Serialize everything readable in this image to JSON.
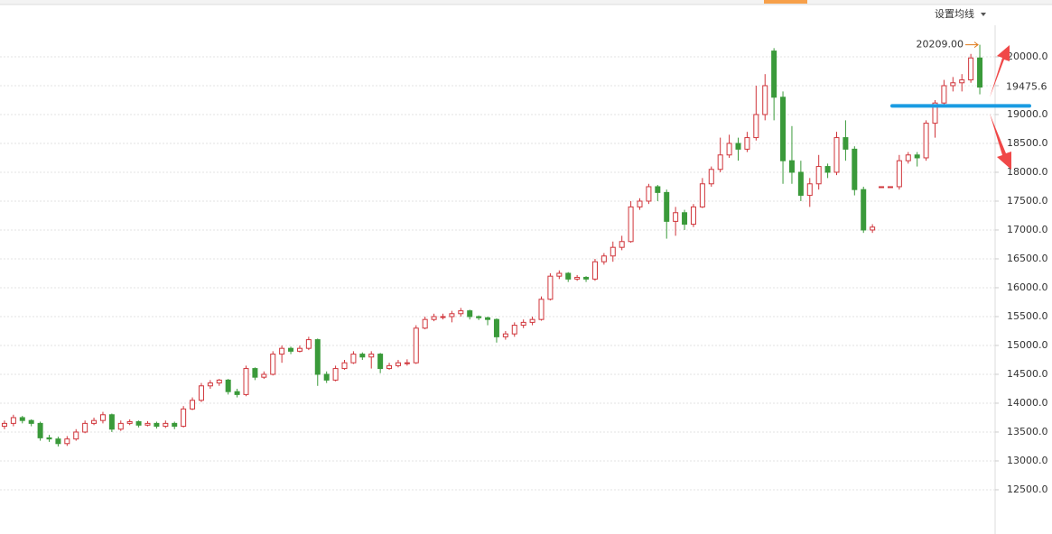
{
  "chart_data": {
    "type": "candlestick",
    "menu": "设置均线",
    "high_label": "20209.00",
    "last_label": "19475.6",
    "up_color": "#d0343a",
    "down_color": "#3a9a3a",
    "hline": {
      "value": 19150,
      "color": "#1a9be2"
    },
    "ylim": [
      11734,
      20984
    ],
    "yticks": [
      {
        "value": 12500,
        "label": "12500.0"
      },
      {
        "value": 13000,
        "label": "13000.0"
      },
      {
        "value": 13500,
        "label": "13500.0"
      },
      {
        "value": 14000,
        "label": "14000.0"
      },
      {
        "value": 14500,
        "label": "14500.0"
      },
      {
        "value": 15000,
        "label": "15000.0"
      },
      {
        "value": 15500,
        "label": "15500.0"
      },
      {
        "value": 16000,
        "label": "16000.0"
      },
      {
        "value": 16500,
        "label": "16500.0"
      },
      {
        "value": 17000,
        "label": "17000.0"
      },
      {
        "value": 17500,
        "label": "17500.0"
      },
      {
        "value": 18000,
        "label": "18000.0"
      },
      {
        "value": 18500,
        "label": "18500.0"
      },
      {
        "value": 19000,
        "label": "19000.0"
      },
      {
        "value": 19500,
        "label": "19500.0"
      },
      {
        "value": 20000,
        "label": "20000.0"
      }
    ],
    "grid": true,
    "open": [
      13600,
      13650,
      13750,
      13700,
      13650,
      13400,
      13380,
      13300,
      13380,
      13500,
      13650,
      13700,
      13800,
      13550,
      13650,
      13680,
      13620,
      13650,
      13600,
      13650,
      13600,
      13900,
      14050,
      14300,
      14350,
      14400,
      14200,
      14150,
      14600,
      14450,
      14500,
      14850,
      14950,
      14900,
      14950,
      15100,
      14500,
      14400,
      14600,
      14700,
      14850,
      14800,
      14850,
      14600,
      14650,
      14700,
      14700,
      15300,
      15450,
      15500,
      15500,
      15550,
      15600,
      15500,
      15480,
      15450,
      15150,
      15200,
      15350,
      15400,
      15450,
      15800,
      16200,
      16250,
      16150,
      16180,
      16150,
      16450,
      16550,
      16700,
      16800,
      17400,
      17500,
      17750,
      17650,
      17150,
      17300,
      17100,
      17400,
      17800,
      18050,
      18300,
      18500,
      18400,
      18600,
      19000,
      20100,
      19300,
      18200,
      18000,
      17600,
      17800,
      18100,
      18000,
      18600,
      18400,
      17700,
      17000,
      17750,
      17750,
      17750,
      18200,
      18300,
      18250,
      18850,
      19200,
      19500,
      19550,
      19600,
      19980
    ],
    "high": [
      13700,
      13800,
      13780,
      13720,
      13680,
      13450,
      13420,
      13430,
      13550,
      13700,
      13750,
      13850,
      13820,
      13700,
      13720,
      13700,
      13690,
      13680,
      13700,
      13680,
      13950,
      14100,
      14350,
      14400,
      14420,
      14420,
      14250,
      14650,
      14620,
      14550,
      14900,
      15000,
      14980,
      15000,
      15150,
      15120,
      14550,
      14650,
      14750,
      14900,
      14880,
      14900,
      14870,
      14700,
      14750,
      14760,
      15350,
      15500,
      15550,
      15550,
      15600,
      15650,
      15620,
      15520,
      15500,
      15470,
      15250,
      15400,
      15450,
      15500,
      15850,
      16250,
      16300,
      16270,
      16220,
      16200,
      16500,
      16600,
      16800,
      16900,
      17500,
      17550,
      17800,
      17780,
      17700,
      17400,
      17350,
      17450,
      17900,
      18100,
      18600,
      18650,
      18600,
      18700,
      19500,
      19700,
      20150,
      19400,
      18800,
      18200,
      17900,
      18300,
      18150,
      18700,
      18900,
      18450,
      17750,
      17100,
      17750,
      17750,
      18300,
      18350,
      18350,
      18900,
      19250,
      19600,
      19650,
      19700,
      20050,
      20209
    ],
    "low": [
      13550,
      13600,
      13650,
      13600,
      13350,
      13330,
      13250,
      13260,
      13350,
      13480,
      13620,
      13650,
      13500,
      13520,
      13620,
      13580,
      13600,
      13560,
      13570,
      13550,
      13580,
      13880,
      14020,
      14250,
      14300,
      14150,
      14100,
      14120,
      14400,
      14420,
      14480,
      14700,
      14850,
      14880,
      14920,
      14300,
      14350,
      14380,
      14580,
      14680,
      14750,
      14600,
      14520,
      14580,
      14620,
      14650,
      14680,
      15280,
      15420,
      15450,
      15400,
      15500,
      15450,
      15440,
      15350,
      15050,
      15100,
      15150,
      15300,
      15350,
      15430,
      15780,
      16150,
      16100,
      16120,
      16100,
      16120,
      16400,
      16450,
      16650,
      16780,
      17350,
      17450,
      17500,
      16850,
      16900,
      17000,
      17050,
      17380,
      17750,
      18000,
      18250,
      18200,
      18350,
      18550,
      18900,
      18900,
      17800,
      17800,
      17500,
      17400,
      17700,
      17900,
      17950,
      18200,
      17600,
      16950,
      16950,
      17750,
      17750,
      17700,
      18150,
      18100,
      18200,
      18600,
      19150,
      19400,
      19400,
      19550,
      19350
    ],
    "close": [
      13650,
      13750,
      13700,
      13650,
      13400,
      13380,
      13300,
      13380,
      13500,
      13650,
      13700,
      13800,
      13550,
      13650,
      13680,
      13620,
      13650,
      13600,
      13650,
      13600,
      13900,
      14050,
      14300,
      14350,
      14400,
      14200,
      14150,
      14600,
      14450,
      14500,
      14850,
      14950,
      14900,
      14950,
      15100,
      14500,
      14400,
      14600,
      14700,
      14850,
      14800,
      14850,
      14600,
      14650,
      14700,
      14700,
      15300,
      15450,
      15500,
      15500,
      15550,
      15600,
      15500,
      15480,
      15450,
      15150,
      15200,
      15350,
      15400,
      15450,
      15800,
      16200,
      16250,
      16150,
      16180,
      16150,
      16450,
      16550,
      16700,
      16800,
      17400,
      17500,
      17750,
      17650,
      17150,
      17300,
      17100,
      17400,
      17800,
      18050,
      18300,
      18500,
      18400,
      18600,
      19000,
      19500,
      19300,
      18200,
      18000,
      17600,
      17800,
      18100,
      18000,
      18600,
      18400,
      17700,
      17000,
      17050,
      17750,
      17750,
      18200,
      18300,
      18250,
      18850,
      19200,
      19500,
      19550,
      19600,
      19980,
      19475.6
    ]
  }
}
